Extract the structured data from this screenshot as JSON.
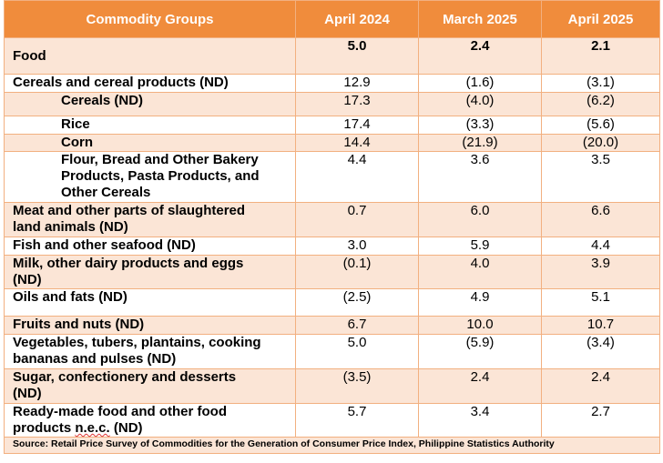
{
  "table": {
    "headers": [
      "Commodity Groups",
      "April 2024",
      "March 2025",
      "April 2025"
    ],
    "food": {
      "label": "Food",
      "values": [
        "5.0",
        "2.4",
        "2.1"
      ]
    },
    "rows": [
      {
        "label": "Cereals and cereal products (ND)",
        "values": [
          "12.9",
          "(1.6)",
          "(3.1)"
        ]
      },
      {
        "label": "Cereals (ND)",
        "values": [
          "17.3",
          "(4.0)",
          "(6.2)"
        ]
      },
      {
        "label": "Rice",
        "values": [
          "17.4",
          "(3.3)",
          "(5.6)"
        ]
      },
      {
        "label": "Corn",
        "values": [
          "14.4",
          "(21.9)",
          "(20.0)"
        ]
      },
      {
        "label_lines": [
          "Flour, Bread and Other Bakery",
          "Products, Pasta Products, and",
          "Other Cereals"
        ],
        "values": [
          "4.4",
          "3.6",
          "3.5"
        ]
      },
      {
        "label_lines": [
          "Meat and other parts of slaughtered",
          "land animals (ND)"
        ],
        "values": [
          "0.7",
          "6.0",
          "6.6"
        ]
      },
      {
        "label": "Fish and other seafood (ND)",
        "values": [
          "3.0",
          "5.9",
          "4.4"
        ]
      },
      {
        "label_lines": [
          "Milk, other dairy products and eggs",
          "(ND)"
        ],
        "values": [
          "(0.1)",
          "4.0",
          "3.9"
        ]
      },
      {
        "label": "Oils and fats (ND)",
        "values": [
          "(2.5)",
          "4.9",
          "5.1"
        ]
      },
      {
        "label": "Fruits and nuts (ND)",
        "values": [
          "6.7",
          "10.0",
          "10.7"
        ]
      },
      {
        "label_lines": [
          "Vegetables, tubers, plantains, cooking",
          "bananas and pulses (ND)"
        ],
        "values": [
          "5.0",
          "(5.9)",
          "(3.4)"
        ]
      },
      {
        "label_lines": [
          "Sugar, confectionery and desserts",
          "(ND)"
        ],
        "values": [
          "(3.5)",
          "2.4",
          "2.4"
        ]
      },
      {
        "label_lines": [
          "Ready-made food and other food",
          "products "
        ],
        "label_tail_underlined": "n.e.c.",
        "label_tail_rest": " (ND)",
        "values": [
          "5.7",
          "3.4",
          "2.7"
        ]
      }
    ],
    "source": "Source: Retail Price Survey of Commodities for the Generation of Consumer Price Index, Philippine Statistics Authority"
  }
}
